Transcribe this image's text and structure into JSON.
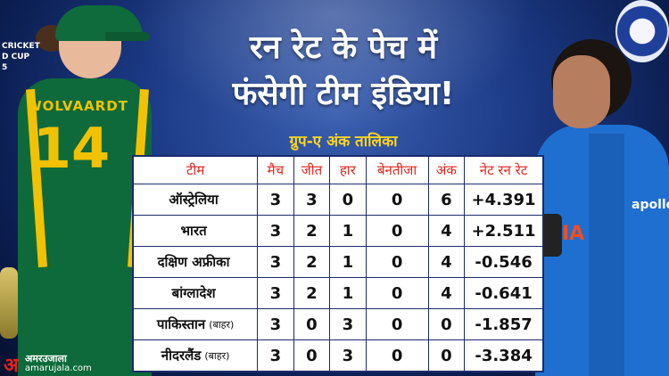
{
  "headline": {
    "line1": "रन रेट के पेच में",
    "line2": "फंसेगी टीम इंडिया!"
  },
  "subtitle": "ग्रुप-ए अंक तालिका",
  "table": {
    "headers": [
      "टीम",
      "मैच",
      "जीत",
      "हार",
      "बेनतीजा",
      "अंक",
      "नेट रन रेट"
    ],
    "rows": [
      {
        "team": "ऑस्ट्रेलिया",
        "tag": "",
        "matches": "3",
        "won": "3",
        "lost": "0",
        "nr": "0",
        "points": "6",
        "nrr": "+4.391"
      },
      {
        "team": "भारत",
        "tag": "",
        "matches": "3",
        "won": "2",
        "lost": "1",
        "nr": "0",
        "points": "4",
        "nrr": "+2.511"
      },
      {
        "team": "दक्षिण अफ्रीका",
        "tag": "",
        "matches": "3",
        "won": "2",
        "lost": "1",
        "nr": "0",
        "points": "4",
        "nrr": "-0.546"
      },
      {
        "team": "बांग्लादेश",
        "tag": "",
        "matches": "3",
        "won": "2",
        "lost": "1",
        "nr": "0",
        "points": "4",
        "nrr": "-0.641"
      },
      {
        "team": "पाकिस्तान",
        "tag": "(बाहर)",
        "matches": "3",
        "won": "0",
        "lost": "3",
        "nr": "0",
        "points": "0",
        "nrr": "-1.857"
      },
      {
        "team": "नीदरलैंड",
        "tag": "(बाहर)",
        "matches": "3",
        "won": "0",
        "lost": "3",
        "nr": "0",
        "points": "0",
        "nrr": "-3.384"
      }
    ]
  },
  "left_player": {
    "jersey_name": "WOLVAARDT",
    "jersey_number": "14",
    "logo_text": "CRICKET\nD CUP\n5"
  },
  "right_player": {
    "sponsor": "apollo",
    "chest_text": "IA"
  },
  "brand": {
    "mark": "अ",
    "name": "अमरउजाला",
    "url": "amarujala.com"
  },
  "colors": {
    "headline": "#ffffff",
    "subtitle": "#ffd51e",
    "header_text": "#e2231a",
    "table_border": "#1b2b6a",
    "brand_red": "#e2231a"
  }
}
